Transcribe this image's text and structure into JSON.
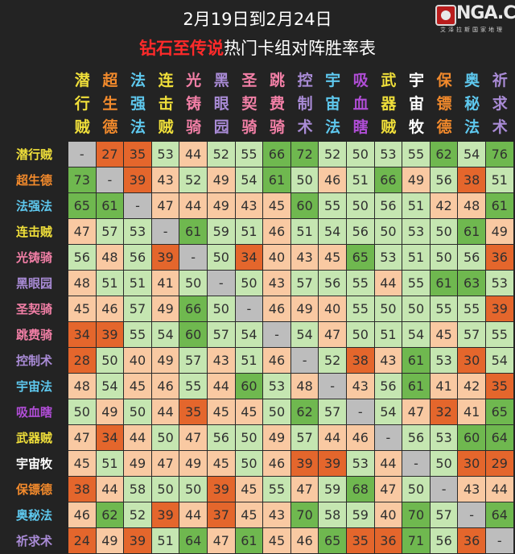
{
  "title": {
    "line1": "2月19日到2月24日",
    "line2_highlight": "钻石至传说",
    "line2_rest": "热门卡组对阵胜率表"
  },
  "logo": {
    "text": "NGA.CN",
    "subtitle": "艾泽拉斯国家地理",
    "icon": "nga-logo-icon"
  },
  "decks": [
    {
      "name": "潜行贼",
      "color": "#f0df3a"
    },
    {
      "name": "超生德",
      "color": "#f28a2c"
    },
    {
      "name": "法强法",
      "color": "#5ec8ee"
    },
    {
      "name": "连击贼",
      "color": "#f0df3a"
    },
    {
      "name": "光铸骑",
      "color": "#f27fa6"
    },
    {
      "name": "黑眼园",
      "color": "#a98bd6"
    },
    {
      "name": "圣契骑",
      "color": "#f27fa6"
    },
    {
      "name": "跳费骑",
      "color": "#f27fa6"
    },
    {
      "name": "控制术",
      "color": "#a98bd6"
    },
    {
      "name": "宇宙法",
      "color": "#5ec8ee"
    },
    {
      "name": "吸血瞎",
      "color": "#b04dd6"
    },
    {
      "name": "武器贼",
      "color": "#f0df3a"
    },
    {
      "name": "宇宙牧",
      "color": "#ffffff"
    },
    {
      "name": "保镖德",
      "color": "#f28a2c"
    },
    {
      "name": "奥秘法",
      "color": "#5ec8ee"
    },
    {
      "name": "祈求术",
      "color": "#a98bd6"
    }
  ],
  "matrix": [
    [
      "-",
      "27",
      "35",
      "53",
      "44",
      "52",
      "55",
      "66",
      "72",
      "52",
      "50",
      "53",
      "55",
      "62",
      "54",
      "76"
    ],
    [
      "73",
      "-",
      "39",
      "43",
      "52",
      "49",
      "54",
      "61",
      "50",
      "46",
      "51",
      "66",
      "49",
      "56",
      "38",
      "51"
    ],
    [
      "65",
      "61",
      "-",
      "47",
      "44",
      "49",
      "43",
      "45",
      "60",
      "55",
      "50",
      "56",
      "51",
      "42",
      "48",
      "61"
    ],
    [
      "47",
      "57",
      "53",
      "-",
      "61",
      "59",
      "51",
      "46",
      "51",
      "54",
      "56",
      "50",
      "53",
      "50",
      "61",
      "49"
    ],
    [
      "56",
      "48",
      "56",
      "39",
      "-",
      "50",
      "34",
      "40",
      "43",
      "45",
      "65",
      "53",
      "51",
      "50",
      "56",
      "36"
    ],
    [
      "48",
      "51",
      "51",
      "41",
      "50",
      "-",
      "50",
      "43",
      "57",
      "56",
      "55",
      "44",
      "55",
      "61",
      "63",
      "53"
    ],
    [
      "45",
      "46",
      "57",
      "49",
      "66",
      "50",
      "-",
      "46",
      "49",
      "40",
      "55",
      "50",
      "50",
      "55",
      "55",
      "39"
    ],
    [
      "34",
      "39",
      "55",
      "54",
      "60",
      "57",
      "54",
      "-",
      "54",
      "47",
      "50",
      "51",
      "54",
      "45",
      "57",
      "55"
    ],
    [
      "28",
      "50",
      "40",
      "49",
      "57",
      "43",
      "51",
      "46",
      "-",
      "52",
      "38",
      "43",
      "61",
      "53",
      "30",
      "54"
    ],
    [
      "48",
      "54",
      "45",
      "46",
      "55",
      "44",
      "60",
      "53",
      "48",
      "-",
      "43",
      "56",
      "61",
      "41",
      "42",
      "35"
    ],
    [
      "50",
      "49",
      "50",
      "44",
      "35",
      "45",
      "45",
      "50",
      "62",
      "57",
      "-",
      "54",
      "47",
      "32",
      "41",
      "65"
    ],
    [
      "47",
      "34",
      "44",
      "50",
      "47",
      "56",
      "50",
      "49",
      "57",
      "44",
      "46",
      "-",
      "56",
      "53",
      "60",
      "64"
    ],
    [
      "45",
      "51",
      "49",
      "47",
      "49",
      "45",
      "50",
      "46",
      "39",
      "39",
      "53",
      "44",
      "-",
      "50",
      "30",
      "29"
    ],
    [
      "38",
      "44",
      "58",
      "50",
      "50",
      "39",
      "45",
      "55",
      "47",
      "59",
      "68",
      "47",
      "50",
      "-",
      "43",
      "44"
    ],
    [
      "46",
      "62",
      "52",
      "39",
      "44",
      "37",
      "45",
      "43",
      "70",
      "58",
      "59",
      "40",
      "70",
      "57",
      "-",
      "64"
    ],
    [
      "24",
      "49",
      "39",
      "51",
      "64",
      "47",
      "61",
      "45",
      "46",
      "65",
      "35",
      "36",
      "71",
      "56",
      "36",
      "-"
    ]
  ],
  "colors": {
    "dash": "#bdbdbd",
    "dark_orange": "#e4662c",
    "light_orange": "#f9c9a2",
    "light_green": "#c5e6b1",
    "dark_green": "#6fb84f",
    "background": "#232323"
  }
}
